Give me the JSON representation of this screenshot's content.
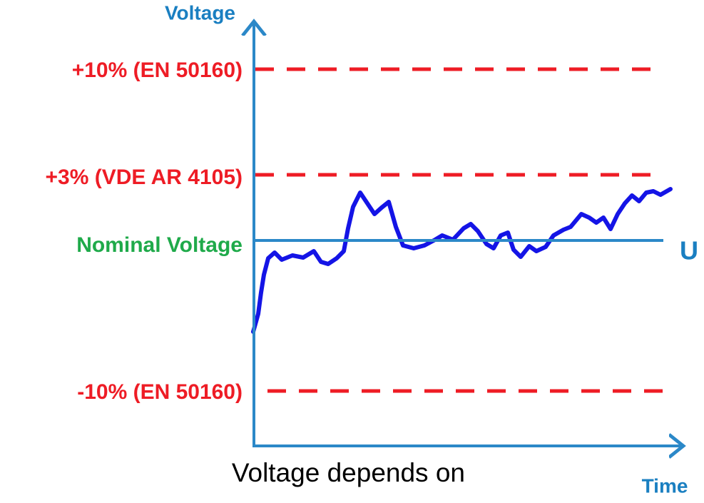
{
  "diagram": {
    "y_axis_label": "Voltage",
    "x_axis_label": "Time",
    "upper_limit_label": "+10% (EN 50160)",
    "vde_limit_label": "+3% (VDE AR 4105)",
    "nominal_label": "Nominal Voltage",
    "nominal_symbol": "U",
    "lower_limit_label": "-10% (EN 50160)",
    "caption": "Voltage depends on"
  }
}
